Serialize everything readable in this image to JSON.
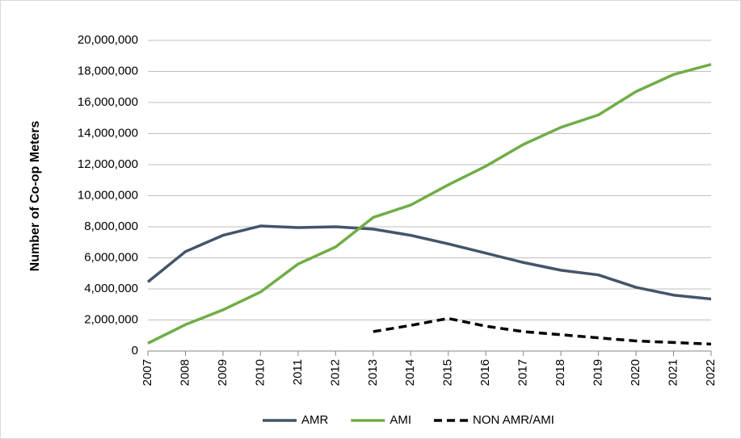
{
  "chart_data": {
    "type": "line",
    "y_label": "Number of Co-op Meters",
    "categories": [
      "2007",
      "2008",
      "2009",
      "2010",
      "2011",
      "2012",
      "2013",
      "2014",
      "2015",
      "2016",
      "2017",
      "2018",
      "2019",
      "2020",
      "2021",
      "2022"
    ],
    "series": [
      {
        "name": "AMR",
        "color": "#44546a",
        "dashed": false,
        "values": [
          4450000,
          6400000,
          7450000,
          8050000,
          7950000,
          8000000,
          7850000,
          7450000,
          6900000,
          6300000,
          5700000,
          5200000,
          4900000,
          4100000,
          3600000,
          3350000
        ]
      },
      {
        "name": "AMI",
        "color": "#70ad47",
        "dashed": false,
        "values": [
          500000,
          1700000,
          2650000,
          3800000,
          5600000,
          6700000,
          8600000,
          9400000,
          10700000,
          11900000,
          13300000,
          14400000,
          15200000,
          16700000,
          17800000,
          18450000
        ]
      },
      {
        "name": "NON AMR/AMI",
        "color": "#000000",
        "dashed": true,
        "values": [
          null,
          null,
          null,
          null,
          null,
          null,
          1250000,
          1650000,
          2100000,
          1600000,
          1250000,
          1050000,
          850000,
          650000,
          550000,
          450000
        ]
      }
    ],
    "ylim": [
      0,
      20000000
    ],
    "yticks": [
      0,
      {
        "value": 2000000,
        "label": "2,000,000"
      },
      {
        "value": 4000000,
        "label": "4,000,000"
      },
      {
        "value": 6000000,
        "label": "6,000,000"
      },
      {
        "value": 8000000,
        "label": "8,000,000"
      },
      {
        "value": 10000000,
        "label": "10,000,000"
      },
      {
        "value": 12000000,
        "label": "12,000,000"
      },
      {
        "value": 14000000,
        "label": "14,000,000"
      },
      {
        "value": 16000000,
        "label": "16,000,000"
      },
      {
        "value": 18000000,
        "label": "18,000,000"
      },
      {
        "value": 20000000,
        "label": "20,000,000"
      }
    ],
    "grid": true,
    "legend": "bottom"
  }
}
